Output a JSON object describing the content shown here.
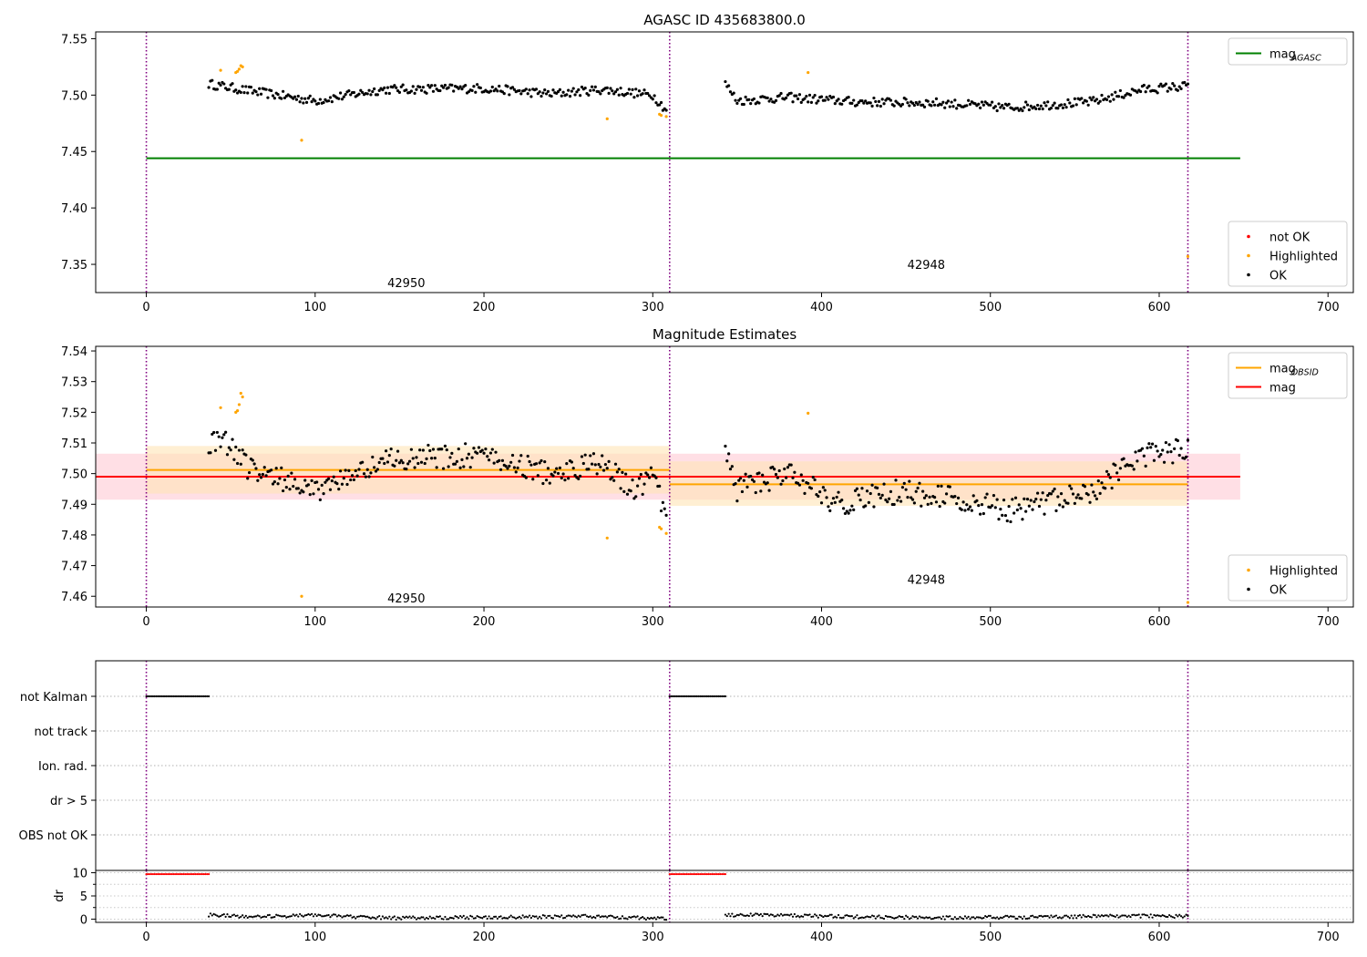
{
  "chart_data": [
    {
      "type": "scatter",
      "title": "AGASC ID 435683800.0",
      "xlim": [
        -30,
        715
      ],
      "ylim": [
        7.325,
        7.556
      ],
      "xticks": [
        0,
        100,
        200,
        300,
        400,
        500,
        600,
        700
      ],
      "yticks": [
        7.35,
        7.4,
        7.45,
        7.5,
        7.55
      ],
      "ytick_labels": [
        "7.35",
        "7.40",
        "7.45",
        "7.50",
        "7.55"
      ],
      "obs_boundaries": [
        0,
        310,
        617
      ],
      "obsid_labels": [
        {
          "text": "42950",
          "x": 154,
          "y": 7.334
        },
        {
          "text": "42948",
          "x": 462,
          "y": 7.35
        }
      ],
      "lines": [
        {
          "name": "mag_AGASC",
          "y": 7.444,
          "x": [
            0,
            648
          ],
          "color": "#008000"
        }
      ],
      "legends": [
        {
          "placement": "upper-right",
          "entries": [
            {
              "label": "mag",
              "sub": "AGASC",
              "kind": "line",
              "color": "#008000"
            }
          ]
        },
        {
          "placement": "lower-right",
          "entries": [
            {
              "label": "not OK",
              "kind": "point",
              "color": "#ff0000"
            },
            {
              "label": "Highlighted",
              "kind": "point",
              "color": "#ffa500"
            },
            {
              "label": "OK",
              "kind": "point",
              "color": "#000000"
            }
          ]
        }
      ],
      "series": [
        {
          "name": "OK",
          "color": "#000000",
          "segments": [
            {
              "x0": 37,
              "x1": 308,
              "base": [
                [
                  37,
                  7.51
                ],
                [
                  60,
                  7.504
                ],
                [
                  100,
                  7.495
                ],
                [
                  140,
                  7.505
                ],
                [
                  200,
                  7.506
                ],
                [
                  240,
                  7.501
                ],
                [
                  270,
                  7.505
                ],
                [
                  300,
                  7.5
                ],
                [
                  308,
                  7.487
                ]
              ],
              "noise": 0.004
            },
            {
              "x0": 343,
              "x1": 617,
              "base": [
                [
                  343,
                  7.51
                ],
                [
                  350,
                  7.495
                ],
                [
                  380,
                  7.498
                ],
                [
                  420,
                  7.494
                ],
                [
                  470,
                  7.493
                ],
                [
                  510,
                  7.489
                ],
                [
                  560,
                  7.494
                ],
                [
                  590,
                  7.505
                ],
                [
                  617,
                  7.508
                ]
              ],
              "noise": 0.004
            }
          ]
        },
        {
          "name": "Highlighted",
          "color": "#ffa500",
          "points": [
            [
              44,
              7.522
            ],
            [
              53,
              7.52
            ],
            [
              54,
              7.521
            ],
            [
              55,
              7.523
            ],
            [
              56,
              7.526
            ],
            [
              57,
              7.525
            ],
            [
              92,
              7.46
            ],
            [
              273,
              7.479
            ],
            [
              304,
              7.483
            ],
            [
              305,
              7.482
            ],
            [
              308,
              7.481
            ],
            [
              392,
              7.52
            ],
            [
              617,
              7.357
            ]
          ]
        }
      ]
    },
    {
      "type": "scatter",
      "title": "Magnitude Estimates",
      "xlim": [
        -30,
        715
      ],
      "ylim": [
        7.4565,
        7.5415
      ],
      "xticks": [
        0,
        100,
        200,
        300,
        400,
        500,
        600,
        700
      ],
      "yticks": [
        7.46,
        7.47,
        7.48,
        7.49,
        7.5,
        7.51,
        7.52,
        7.53,
        7.54
      ],
      "ytick_labels": [
        "7.46",
        "7.47",
        "7.48",
        "7.49",
        "7.50",
        "7.51",
        "7.52",
        "7.53",
        "7.54"
      ],
      "obs_boundaries": [
        0,
        310,
        617
      ],
      "obsid_labels": [
        {
          "text": "42950",
          "x": 154,
          "y": 7.4595
        },
        {
          "text": "42948",
          "x": 462,
          "y": 7.4655
        }
      ],
      "bands": [
        {
          "name": "mag",
          "x": [
            -30,
            648
          ],
          "y": [
            7.4915,
            7.5065
          ],
          "color": "#ffc0cb",
          "alpha": 0.5
        },
        {
          "name": "mag_OBSID 42950",
          "x": [
            0,
            310
          ],
          "y": [
            7.4935,
            7.509
          ],
          "color": "#ffe4b5",
          "alpha": 0.6
        },
        {
          "name": "mag_OBSID 42948",
          "x": [
            310,
            617
          ],
          "y": [
            7.4895,
            7.504
          ],
          "color": "#ffe4b5",
          "alpha": 0.6
        }
      ],
      "lines": [
        {
          "name": "mag",
          "y": 7.499,
          "x": [
            -30,
            648
          ],
          "color": "#ff0000"
        },
        {
          "name": "mag_OBSID 42950",
          "y": 7.5012,
          "x": [
            0,
            310
          ],
          "color": "#ffa500"
        },
        {
          "name": "mag_OBSID 42948",
          "y": 7.4965,
          "x": [
            310,
            617
          ],
          "color": "#ffa500"
        }
      ],
      "legends": [
        {
          "placement": "upper-right",
          "entries": [
            {
              "label": "mag",
              "sub": "OBSID",
              "kind": "line",
              "color": "#ffa500"
            },
            {
              "label": "mag",
              "kind": "line",
              "color": "#ff0000"
            }
          ]
        },
        {
          "placement": "lower-right",
          "entries": [
            {
              "label": "Highlighted",
              "kind": "point",
              "color": "#ffa500"
            },
            {
              "label": "OK",
              "kind": "point",
              "color": "#000000"
            }
          ]
        }
      ],
      "series": [
        {
          "name": "OK",
          "color": "#000000",
          "segments": [
            {
              "x0": 37,
              "x1": 308,
              "base": [
                [
                  37,
                  7.51
                ],
                [
                  45,
                  7.512
                ],
                [
                  60,
                  7.502
                ],
                [
                  100,
                  7.494
                ],
                [
                  140,
                  7.505
                ],
                [
                  200,
                  7.506
                ],
                [
                  240,
                  7.5
                ],
                [
                  270,
                  7.504
                ],
                [
                  290,
                  7.494
                ],
                [
                  300,
                  7.5
                ],
                [
                  308,
                  7.486
                ]
              ],
              "noise": 0.004
            },
            {
              "x0": 343,
              "x1": 617,
              "base": [
                [
                  343,
                  7.51
                ],
                [
                  350,
                  7.495
                ],
                [
                  380,
                  7.5
                ],
                [
                  410,
                  7.49
                ],
                [
                  440,
                  7.494
                ],
                [
                  470,
                  7.493
                ],
                [
                  510,
                  7.488
                ],
                [
                  560,
                  7.494
                ],
                [
                  590,
                  7.506
                ],
                [
                  617,
                  7.508
                ]
              ],
              "noise": 0.004
            }
          ]
        },
        {
          "name": "Highlighted",
          "color": "#ffa500",
          "points": [
            [
              44,
              7.5215
            ],
            [
              53,
              7.52
            ],
            [
              54,
              7.5205
            ],
            [
              55,
              7.5225
            ],
            [
              56,
              7.5262
            ],
            [
              57,
              7.525
            ],
            [
              92,
              7.46
            ],
            [
              273,
              7.479
            ],
            [
              304,
              7.4825
            ],
            [
              305,
              7.482
            ],
            [
              308,
              7.4805
            ],
            [
              392,
              7.5197
            ],
            [
              617,
              7.458
            ]
          ]
        }
      ]
    },
    {
      "type": "scatter",
      "title": "",
      "xlim": [
        -30,
        715
      ],
      "category_rows": [
        "not Kalman",
        "not track",
        "Ion. rad.",
        "dr > 5",
        "OBS not OK"
      ],
      "obs_boundaries": [
        0,
        310,
        617
      ],
      "flag_runs": [
        {
          "row": "not Kalman",
          "x": [
            0,
            37
          ],
          "color": "#000000"
        },
        {
          "row": "not Kalman",
          "x": [
            310,
            343
          ],
          "color": "#000000"
        }
      ]
    },
    {
      "type": "scatter",
      "title": "",
      "xlim": [
        -30,
        715
      ],
      "ylim": [
        -0.7,
        10.5
      ],
      "ylabel": "dr",
      "xticks": [
        0,
        100,
        200,
        300,
        400,
        500,
        600,
        700
      ],
      "yticks": [
        0,
        5,
        10
      ],
      "obs_boundaries": [
        0,
        310,
        617
      ],
      "series": [
        {
          "name": "dr > 10",
          "color": "#ff0000",
          "runs": [
            {
              "x": [
                0,
                37
              ],
              "y": 9.7
            },
            {
              "x": [
                310,
                343
              ],
              "y": 9.7
            }
          ]
        },
        {
          "name": "dr",
          "color": "#000000",
          "segments": [
            {
              "x0": 37,
              "x1": 308,
              "base": [
                [
                  37,
                  0.9
                ],
                [
                  60,
                  0.5
                ],
                [
                  100,
                  0.8
                ],
                [
                  150,
                  0.2
                ],
                [
                  200,
                  0.4
                ],
                [
                  260,
                  0.6
                ],
                [
                  308,
                  0.1
                ]
              ],
              "noise": 0.35
            },
            {
              "x0": 343,
              "x1": 617,
              "base": [
                [
                  343,
                  0.8
                ],
                [
                  370,
                  0.9
                ],
                [
                  420,
                  0.5
                ],
                [
                  470,
                  0.3
                ],
                [
                  520,
                  0.4
                ],
                [
                  580,
                  0.7
                ],
                [
                  617,
                  0.6
                ]
              ],
              "noise": 0.35
            }
          ]
        }
      ]
    }
  ]
}
